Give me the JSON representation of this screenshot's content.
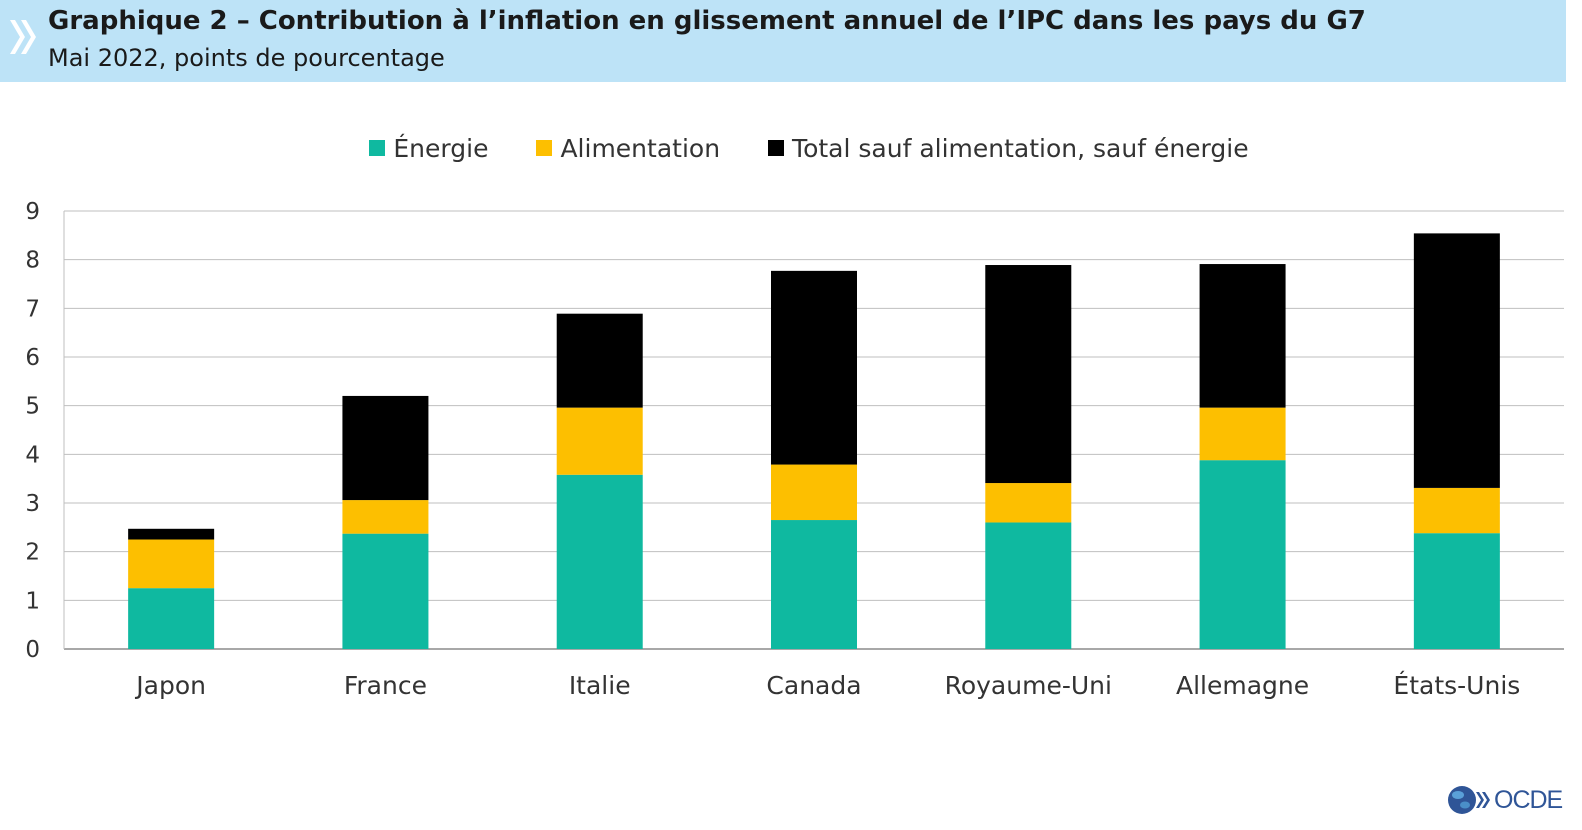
{
  "header": {
    "title": "Graphique 2 – Contribution à l’inflation en glissement annuel de l’IPC dans les pays du G7",
    "subtitle": "Mai 2022, points de pourcentage"
  },
  "branding": {
    "logo_text": "OCDE",
    "logo_icon": "globe-icon"
  },
  "chart_data": {
    "type": "bar",
    "stacked": true,
    "categories": [
      "Japon",
      "France",
      "Italie",
      "Canada",
      "Royaume-Uni",
      "Allemagne",
      "États-Unis"
    ],
    "series": [
      {
        "name": "Énergie",
        "color": "#0fb9a0",
        "values": [
          1.25,
          2.37,
          3.58,
          2.65,
          2.6,
          3.88,
          2.38
        ]
      },
      {
        "name": "Alimentation",
        "color": "#fdbf00",
        "values": [
          1.0,
          0.69,
          1.38,
          1.14,
          0.81,
          1.08,
          0.93
        ]
      },
      {
        "name": "Total sauf alimentation, sauf énergie",
        "color": "#000000",
        "values": [
          0.22,
          2.14,
          1.93,
          3.98,
          4.48,
          2.95,
          5.23
        ]
      }
    ],
    "ylim": [
      0,
      9
    ],
    "yticks": [
      0,
      1,
      2,
      3,
      4,
      5,
      6,
      7,
      8,
      9
    ],
    "grid": true,
    "legend": "top-center"
  }
}
